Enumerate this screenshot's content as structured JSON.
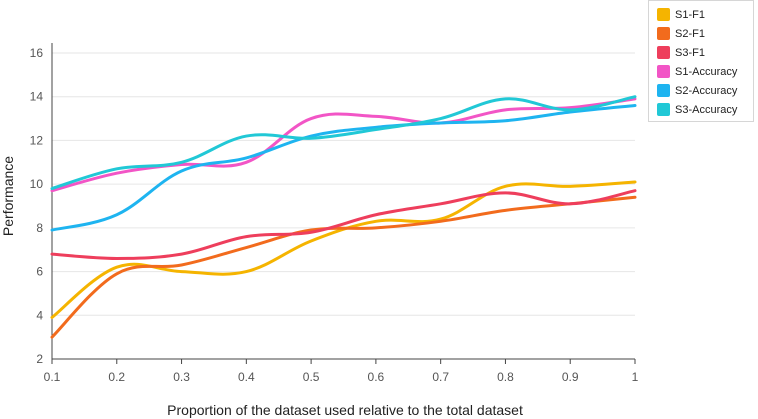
{
  "chart_data": {
    "type": "line",
    "title": "",
    "xlabel": "Proportion of the dataset used relative to the total dataset",
    "ylabel": "Performance",
    "xlim": [
      0.1,
      1.0
    ],
    "ylim": [
      2,
      16
    ],
    "x": [
      0.1,
      0.2,
      0.3,
      0.4,
      0.5,
      0.6,
      0.7,
      0.8,
      0.9,
      1.0
    ],
    "x_tick_labels": [
      "0.1",
      "0.2",
      "0.3",
      "0.4",
      "0.5",
      "0.6",
      "0.7",
      "0.8",
      "0.9",
      "1"
    ],
    "y_ticks": [
      2,
      4,
      6,
      8,
      10,
      12,
      14,
      16
    ],
    "y_tick_labels": [
      "2",
      "4",
      "6",
      "8",
      "10",
      "12",
      "14",
      "16"
    ],
    "grid": "horizontal",
    "legend_position": "top-right",
    "series": [
      {
        "name": "S1-F1",
        "color": "#f5b400",
        "values": [
          3.9,
          6.2,
          6.0,
          6.0,
          7.4,
          8.3,
          8.4,
          9.9,
          9.9,
          10.1
        ]
      },
      {
        "name": "S2-F1",
        "color": "#f26b1d",
        "values": [
          3.0,
          5.9,
          6.3,
          7.1,
          7.9,
          8.0,
          8.3,
          8.8,
          9.1,
          9.4
        ]
      },
      {
        "name": "S3-F1",
        "color": "#ee3e5c",
        "values": [
          6.8,
          6.6,
          6.8,
          7.6,
          7.8,
          8.6,
          9.1,
          9.6,
          9.1,
          9.7
        ]
      },
      {
        "name": "S1-Accuracy",
        "color": "#f255c6",
        "values": [
          9.7,
          10.5,
          10.9,
          11.0,
          13.0,
          13.1,
          12.8,
          13.4,
          13.5,
          13.9
        ]
      },
      {
        "name": "S2-Accuracy",
        "color": "#1eb4f0",
        "values": [
          7.9,
          8.6,
          10.6,
          11.2,
          12.2,
          12.6,
          12.8,
          12.9,
          13.3,
          13.6
        ]
      },
      {
        "name": "S3-Accuracy",
        "color": "#21c8d6",
        "values": [
          9.8,
          10.7,
          11.0,
          12.2,
          12.1,
          12.5,
          13.0,
          13.9,
          13.4,
          14.0
        ]
      }
    ]
  }
}
